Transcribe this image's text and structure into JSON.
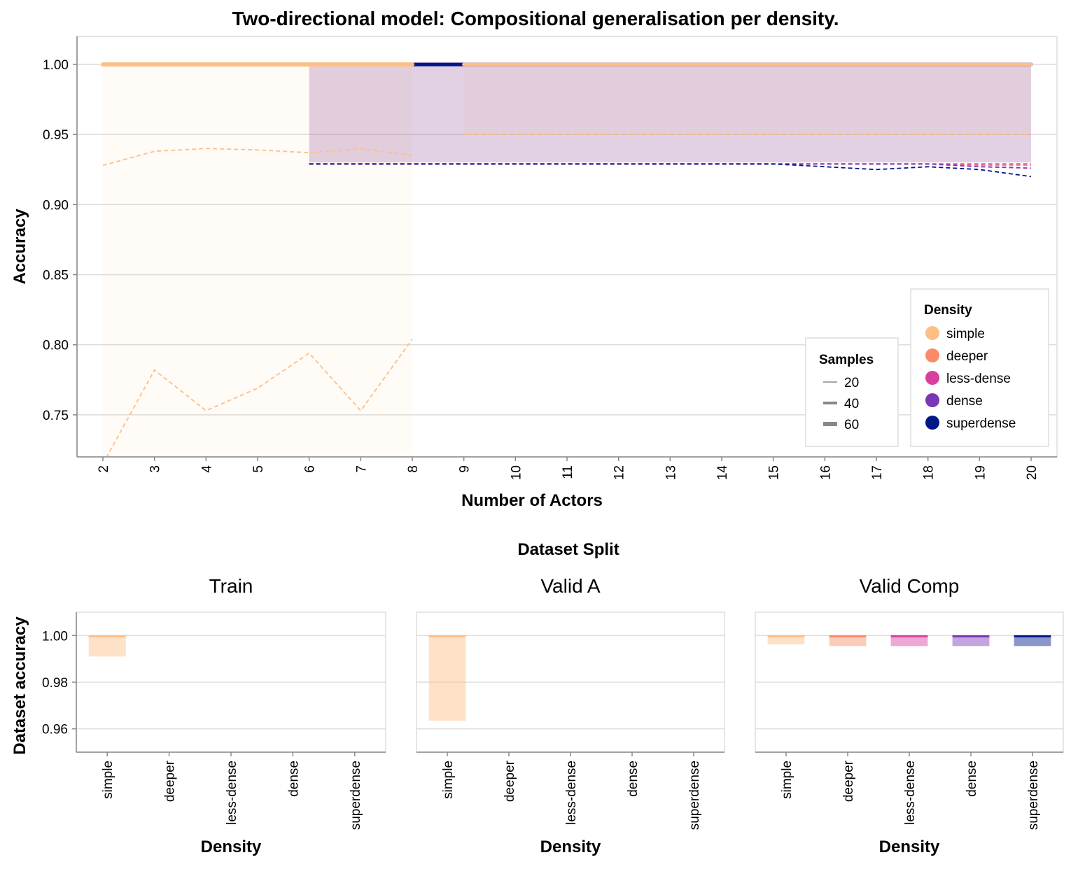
{
  "colors": {
    "simple": "#fdbf84",
    "deeper": "#f98b6b",
    "less-dense": "#d93f9f",
    "dense": "#7a36b6",
    "superdense": "#00178a"
  },
  "chart_data": [
    {
      "type": "line",
      "title": "Two-directional model: Compositional generalisation per density.",
      "xlabel": "Number of Actors",
      "ylabel": "Accuracy",
      "x": [
        2,
        3,
        4,
        5,
        6,
        7,
        8,
        9,
        10,
        11,
        12,
        13,
        14,
        15,
        16,
        17,
        18,
        19,
        20
      ],
      "ylim": [
        0.72,
        1.02
      ],
      "y_ticks": [
        "0.75",
        "0.80",
        "0.85",
        "0.90",
        "0.95",
        "1.00"
      ],
      "y_tick_values": [
        0.75,
        0.8,
        0.85,
        0.9,
        0.95,
        1.0
      ],
      "series": [
        {
          "name": "simple",
          "x_range": [
            2,
            8
          ],
          "mean": [
            1.0,
            1.0,
            1.0,
            1.0,
            1.0,
            1.0,
            1.0
          ],
          "upper": [
            1.0,
            1.0,
            1.0,
            1.0,
            1.0,
            1.0,
            1.0
          ],
          "lower": [
            0.72,
            0.72,
            0.72,
            0.72,
            0.72,
            0.72,
            0.72
          ],
          "dashed_lines": [
            [
              0.928,
              0.938,
              0.94,
              0.939,
              0.937,
              0.94,
              0.935
            ],
            [
              0.715,
              0.782,
              0.753,
              0.769,
              0.794,
              0.753,
              0.804
            ]
          ]
        },
        {
          "name": "simple",
          "x_range": [
            9,
            20
          ],
          "mean": [
            1.0,
            1.0,
            1.0,
            1.0,
            1.0,
            1.0,
            1.0,
            1.0,
            1.0,
            1.0,
            1.0,
            1.0
          ],
          "upper": [
            1.0,
            1.0,
            1.0,
            1.0,
            1.0,
            1.0,
            1.0,
            1.0,
            1.0,
            1.0,
            1.0,
            1.0
          ],
          "lower": [
            0.95,
            0.95,
            0.95,
            0.95,
            0.95,
            0.95,
            0.95,
            0.95,
            0.95,
            0.95,
            0.95,
            0.95
          ],
          "dashed_lines": [
            [
              0.95,
              0.95,
              0.95,
              0.95,
              0.95,
              0.95,
              0.95,
              0.95,
              0.95,
              0.95,
              0.95,
              0.95
            ],
            [
              1.0,
              1.0,
              1.0,
              1.0,
              1.0,
              1.0,
              1.0,
              1.0,
              1.0,
              1.0,
              1.0,
              1.0
            ]
          ]
        },
        {
          "name": "deeper",
          "x_range": [
            6,
            20
          ],
          "mean": [
            1.0,
            1.0,
            1.0,
            1.0,
            1.0,
            1.0,
            1.0,
            1.0,
            1.0,
            1.0,
            1.0,
            1.0,
            1.0,
            1.0,
            1.0
          ],
          "upper": [
            1.0,
            1.0,
            1.0,
            1.0,
            1.0,
            1.0,
            1.0,
            1.0,
            1.0,
            1.0,
            1.0,
            1.0,
            1.0,
            1.0,
            1.0
          ],
          "lower": [
            0.93,
            0.93,
            0.93,
            0.93,
            0.93,
            0.93,
            0.93,
            0.93,
            0.93,
            0.93,
            0.93,
            0.93,
            0.93,
            0.93,
            0.93
          ],
          "dashed_lines": [
            [
              0.929,
              0.929,
              0.929,
              0.929,
              0.929,
              0.929,
              0.929,
              0.929,
              0.929,
              0.929,
              0.929,
              0.929,
              0.929,
              0.928,
              0.928
            ]
          ]
        },
        {
          "name": "less-dense",
          "x_range": [
            6,
            20
          ],
          "mean": [
            1.0,
            1.0,
            1.0,
            1.0,
            1.0,
            1.0,
            1.0,
            1.0,
            1.0,
            1.0,
            1.0,
            1.0,
            1.0,
            1.0,
            1.0
          ],
          "upper": [
            1.0,
            1.0,
            1.0,
            1.0,
            1.0,
            1.0,
            1.0,
            1.0,
            1.0,
            1.0,
            1.0,
            1.0,
            1.0,
            1.0,
            1.0
          ],
          "lower": [
            0.93,
            0.93,
            0.93,
            0.93,
            0.93,
            0.93,
            0.93,
            0.93,
            0.93,
            0.93,
            0.93,
            0.93,
            0.93,
            0.93,
            0.93
          ],
          "dashed_lines": [
            [
              0.929,
              0.929,
              0.929,
              0.929,
              0.929,
              0.929,
              0.929,
              0.929,
              0.929,
              0.929,
              0.929,
              0.929,
              0.929,
              0.929,
              0.929
            ]
          ]
        },
        {
          "name": "dense",
          "x_range": [
            6,
            20
          ],
          "mean": [
            1.0,
            1.0,
            1.0,
            1.0,
            1.0,
            1.0,
            1.0,
            1.0,
            1.0,
            1.0,
            1.0,
            1.0,
            1.0,
            1.0,
            1.0
          ],
          "upper": [
            1.0,
            1.0,
            1.0,
            1.0,
            1.0,
            1.0,
            1.0,
            1.0,
            1.0,
            1.0,
            1.0,
            1.0,
            1.0,
            1.0,
            1.0
          ],
          "lower": [
            0.93,
            0.93,
            0.93,
            0.93,
            0.93,
            0.93,
            0.93,
            0.93,
            0.93,
            0.93,
            0.93,
            0.93,
            0.93,
            0.93,
            0.93
          ],
          "dashed_lines": [
            [
              0.929,
              0.929,
              0.929,
              0.929,
              0.929,
              0.929,
              0.929,
              0.929,
              0.929,
              0.929,
              0.929,
              0.929,
              0.929,
              0.927,
              0.926
            ]
          ]
        },
        {
          "name": "superdense",
          "x_range": [
            6,
            20
          ],
          "mean": [
            1.0,
            1.0,
            1.0,
            1.0,
            1.0,
            1.0,
            1.0,
            1.0,
            1.0,
            1.0,
            1.0,
            1.0,
            1.0,
            1.0,
            1.0
          ],
          "upper": [
            1.0,
            1.0,
            1.0,
            1.0,
            1.0,
            1.0,
            1.0,
            1.0,
            1.0,
            1.0,
            1.0,
            1.0,
            1.0,
            1.0,
            1.0
          ],
          "lower": [
            0.93,
            0.93,
            0.93,
            0.93,
            0.93,
            0.93,
            0.93,
            0.93,
            0.93,
            0.93,
            0.93,
            0.93,
            0.93,
            0.93,
            0.93
          ],
          "dashed_lines": [
            [
              0.929,
              0.929,
              0.929,
              0.929,
              0.929,
              0.929,
              0.929,
              0.929,
              0.929,
              0.929,
              0.927,
              0.925,
              0.927,
              0.925,
              0.92
            ]
          ]
        }
      ],
      "legend_color": {
        "title": "Density",
        "items": [
          "simple",
          "deeper",
          "less-dense",
          "dense",
          "superdense"
        ]
      },
      "legend_size": {
        "title": "Samples",
        "items": [
          "20",
          "40",
          "60"
        ]
      }
    },
    {
      "type": "bar",
      "super_title": "Dataset Split",
      "ylabel": "Dataset accuracy",
      "xlabel": "Density",
      "categories": [
        "simple",
        "deeper",
        "less-dense",
        "dense",
        "superdense"
      ],
      "ylim": [
        0.95,
        1.01
      ],
      "y_ticks": [
        "0.96",
        "0.98",
        "1.00"
      ],
      "y_tick_values": [
        0.96,
        0.98,
        1.0
      ],
      "facets": [
        {
          "title": "Train",
          "bars": [
            {
              "category": "simple",
              "low": 0.991,
              "high": 1.0
            }
          ]
        },
        {
          "title": "Valid A",
          "bars": [
            {
              "category": "simple",
              "low": 0.9635,
              "high": 1.0
            }
          ]
        },
        {
          "title": "Valid Comp",
          "bars": [
            {
              "category": "simple",
              "low": 0.9962,
              "high": 1.0
            },
            {
              "category": "deeper",
              "low": 0.9955,
              "high": 1.0
            },
            {
              "category": "less-dense",
              "low": 0.9955,
              "high": 1.0
            },
            {
              "category": "dense",
              "low": 0.9955,
              "high": 1.0
            },
            {
              "category": "superdense",
              "low": 0.9955,
              "high": 1.0
            }
          ]
        }
      ]
    }
  ]
}
